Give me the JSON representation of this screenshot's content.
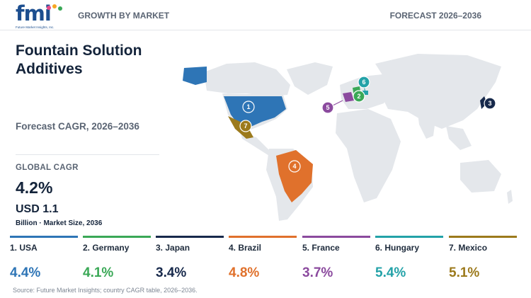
{
  "header": {
    "logo_text": "fmi",
    "logo_tagline": "Future Market Insights, Inc.",
    "section_label": "GROWTH BY MARKET",
    "forecast_label": "FORECAST 2026–2036"
  },
  "title": "Fountain Solution Additives",
  "subtitle": "Forecast CAGR, 2026–2036",
  "global": {
    "cagr_label": "GLOBAL CAGR",
    "cagr_value": "4.2%",
    "market_size": "USD 1.1",
    "market_note": "Billion · Market Size, 2036"
  },
  "chart_data": {
    "type": "table",
    "title": "Fountain Solution Additives",
    "subtitle": "Forecast CAGR, 2026–2036",
    "global_cagr_pct": 4.2,
    "market_size_usd_billion_2036": 1.1,
    "rows": [
      {
        "rank": 1,
        "country": "USA",
        "cagr_pct": 4.4,
        "color": "#2e75b6"
      },
      {
        "rank": 2,
        "country": "Germany",
        "cagr_pct": 4.1,
        "color": "#3aa856"
      },
      {
        "rank": 3,
        "country": "Japan",
        "cagr_pct": 3.4,
        "color": "#17294b"
      },
      {
        "rank": 4,
        "country": "Brazil",
        "cagr_pct": 4.8,
        "color": "#e0712c"
      },
      {
        "rank": 5,
        "country": "France",
        "cagr_pct": 3.7,
        "color": "#8b4a9e"
      },
      {
        "rank": 6,
        "country": "Hungary",
        "cagr_pct": 5.4,
        "color": "#23a2a8"
      },
      {
        "rank": 7,
        "country": "Mexico",
        "cagr_pct": 5.1,
        "color": "#9c7a1c"
      }
    ]
  },
  "countries": [
    {
      "label": "1. USA",
      "value": "4.4%",
      "color": "#2e75b6",
      "marker": "1"
    },
    {
      "label": "2. Germany",
      "value": "4.1%",
      "color": "#3aa856",
      "marker": "2"
    },
    {
      "label": "3. Japan",
      "value": "3.4%",
      "color": "#17294b",
      "marker": "3"
    },
    {
      "label": "4. Brazil",
      "value": "4.8%",
      "color": "#e0712c",
      "marker": "4"
    },
    {
      "label": "5. France",
      "value": "3.7%",
      "color": "#8b4a9e",
      "marker": "5"
    },
    {
      "label": "6. Hungary",
      "value": "5.4%",
      "color": "#23a2a8",
      "marker": "6"
    },
    {
      "label": "7. Mexico",
      "value": "5.1%",
      "color": "#9c7a1c",
      "marker": "7"
    }
  ],
  "colors": {
    "land": "#e4e7eb",
    "text_dark": "#13233a",
    "text_muted": "#5a6473"
  },
  "source": "Source: Future Market Insights; country CAGR table, 2026–2036."
}
